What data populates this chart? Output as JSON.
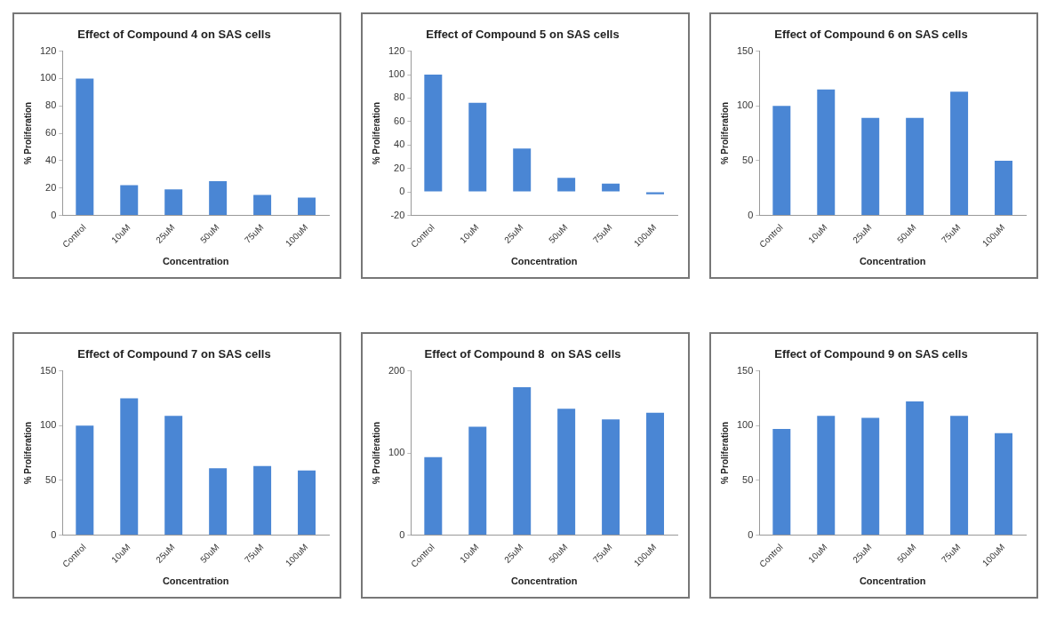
{
  "chart_data": [
    {
      "type": "bar",
      "title": "Effect of Compound 4 on SAS cells",
      "xlabel": "Concentration",
      "ylabel": "% Proliferation",
      "categories": [
        "Control",
        "10uM",
        "25uM",
        "50uM",
        "75uM",
        "100uM"
      ],
      "values": [
        100,
        22,
        19,
        25,
        15,
        13
      ],
      "color": "#4a86d4",
      "ylim": [
        0,
        120
      ],
      "yticks": [
        0,
        20,
        40,
        60,
        80,
        100,
        120
      ]
    },
    {
      "type": "bar",
      "title": "Effect of Compound 5 on SAS cells",
      "xlabel": "Concentration",
      "ylabel": "% Proliferation",
      "categories": [
        "Control",
        "10uM",
        "25uM",
        "50uM",
        "75uM",
        "100uM"
      ],
      "values": [
        100,
        76,
        37,
        12,
        7,
        -2
      ],
      "color": "#4a86d4",
      "ylim": [
        -20,
        120
      ],
      "yticks": [
        -20,
        0,
        20,
        40,
        60,
        80,
        100,
        120
      ]
    },
    {
      "type": "bar",
      "title": "Effect of Compound 6 on SAS cells",
      "xlabel": "Concentration",
      "ylabel": "% Proliferation",
      "categories": [
        "Control",
        "10uM",
        "25uM",
        "50uM",
        "75uM",
        "100uM"
      ],
      "values": [
        100,
        115,
        89,
        89,
        113,
        50
      ],
      "color": "#4a86d4",
      "ylim": [
        0,
        150
      ],
      "yticks": [
        0,
        50,
        100,
        150
      ]
    },
    {
      "type": "bar",
      "title": "Effect of Compound 7 on SAS cells",
      "xlabel": "Concentration",
      "ylabel": "% Proliferation",
      "categories": [
        "Control",
        "10uM",
        "25uM",
        "50uM",
        "75uM",
        "100uM"
      ],
      "values": [
        100,
        125,
        109,
        61,
        63,
        59
      ],
      "color": "#4a86d4",
      "ylim": [
        0,
        150
      ],
      "yticks": [
        0,
        50,
        100,
        150
      ]
    },
    {
      "type": "bar",
      "title": "Effect of Compound 8  on SAS cells",
      "xlabel": "Concentration",
      "ylabel": "% Proliferation",
      "categories": [
        "Control",
        "10uM",
        "25uM",
        "50uM",
        "75uM",
        "100uM"
      ],
      "values": [
        95,
        132,
        180,
        154,
        141,
        149
      ],
      "color": "#4a86d4",
      "ylim": [
        0,
        200
      ],
      "yticks": [
        0,
        100,
        200
      ]
    },
    {
      "type": "bar",
      "title": "Effect of Compound 9 on SAS cells",
      "xlabel": "Concentration",
      "ylabel": "% Proliferation",
      "categories": [
        "Control",
        "10uM",
        "25uM",
        "50uM",
        "75uM",
        "100uM"
      ],
      "values": [
        97,
        109,
        107,
        122,
        109,
        93
      ],
      "color": "#4a86d4",
      "ylim": [
        0,
        150
      ],
      "yticks": [
        0,
        50,
        100,
        150
      ]
    }
  ]
}
